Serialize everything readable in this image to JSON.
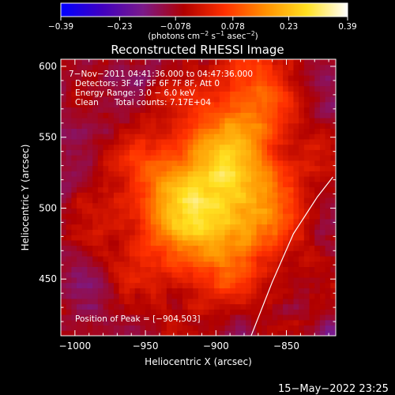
{
  "chart_data": {
    "type": "heatmap",
    "title": "Reconstructed RHESSI Image",
    "xlabel": "Heliocentric X (arcsec)",
    "ylabel": "Heliocentric Y (arcsec)",
    "xlim": [
      -1010,
      -815
    ],
    "ylim": [
      410,
      605
    ],
    "x_ticks": [
      -1000,
      -950,
      -900,
      -850
    ],
    "x_tick_labels": [
      "−1000",
      "−950",
      "−900",
      "−850"
    ],
    "y_ticks": [
      450,
      500,
      550,
      600
    ],
    "y_tick_labels": [
      "450",
      "500",
      "550",
      "600"
    ],
    "colorbar": {
      "range": [
        -0.39,
        0.39
      ],
      "ticks": [
        -0.39,
        -0.23,
        -0.078,
        0.078,
        0.23,
        0.39
      ],
      "tick_labels": [
        "−0.39",
        "−0.23",
        "−0.078",
        "0.078",
        "0.23",
        "0.39"
      ],
      "unit_main": "(photons cm",
      "unit_sup1": "−2",
      "unit_mid": " s",
      "unit_sup2": "−1",
      "unit_mid2": " asec",
      "unit_sup3": "−2",
      "unit_end": ")",
      "colors": [
        "#0000ff",
        "#4000c0",
        "#7a1a8a",
        "#b00000",
        "#ff3000",
        "#ff9000",
        "#ffe020",
        "#ffffff"
      ]
    },
    "source": {
      "peak_x": -904,
      "peak_y": 503,
      "peak_value": 0.39,
      "core_sigma_arcsec": 40
    },
    "limb_points": [
      [
        -875,
        410
      ],
      [
        -860,
        448
      ],
      [
        -845,
        482
      ],
      [
        -828,
        508
      ],
      [
        -817,
        522
      ]
    ],
    "annotations": {
      "time": "7−Nov−2011 04:41:36.000 to 04:47:36.000",
      "detectors": "Detectors: 3F 4F 5F 6F 7F 8F, Att 0",
      "energy": "Energy Range: 3.0 − 6.0 keV",
      "method": "Clean",
      "counts": "Total counts: 7.17E+04",
      "peak": "Position of Peak = [−904,503]"
    },
    "grid": false
  },
  "footer": {
    "date": "15−May−2022 23:25"
  }
}
